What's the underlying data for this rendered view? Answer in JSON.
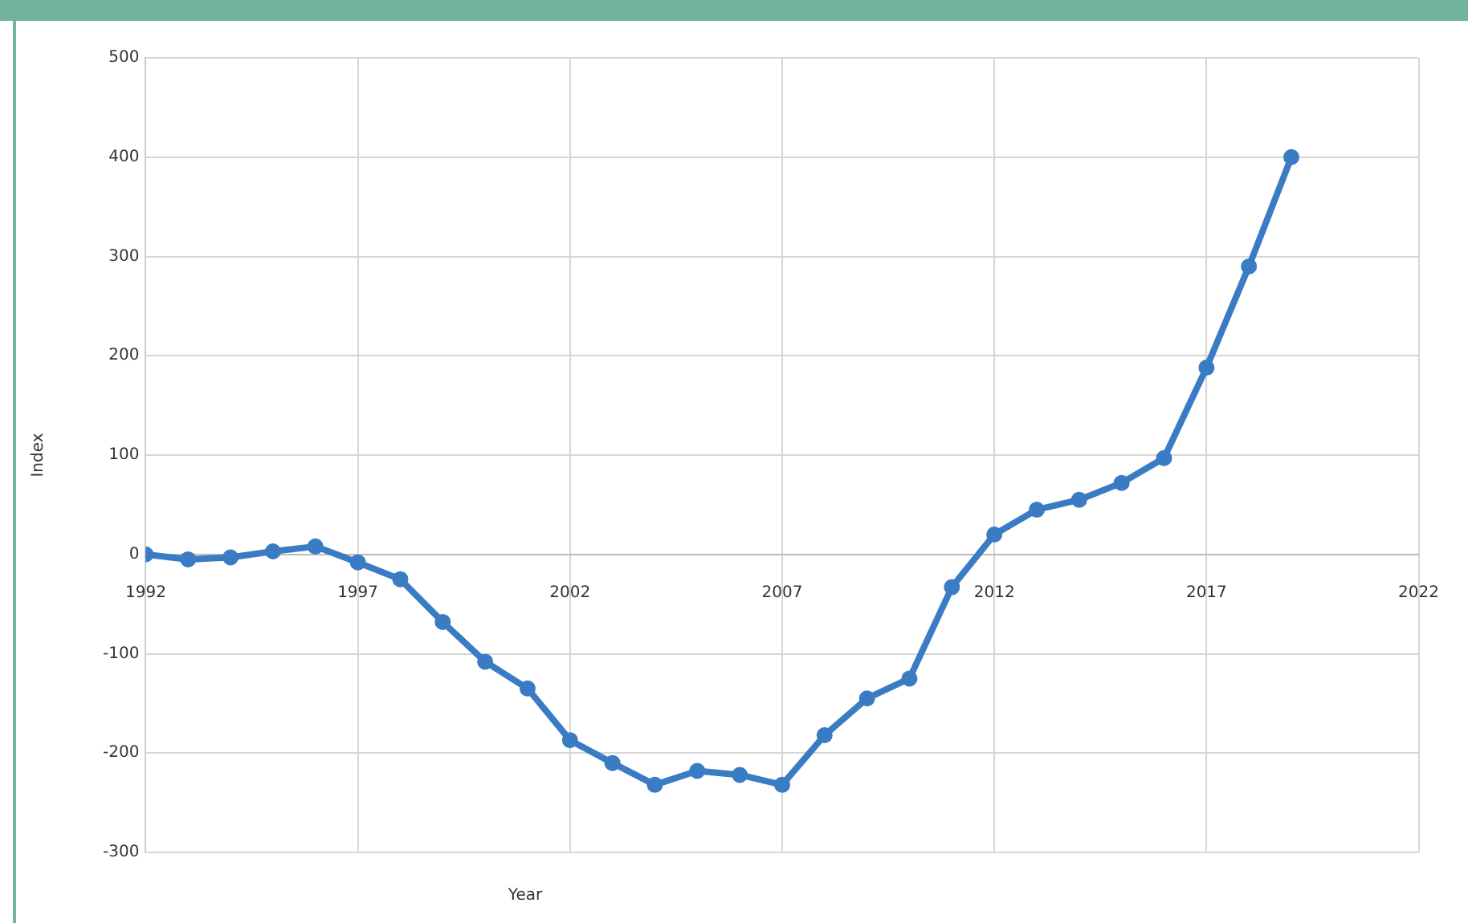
{
  "chart_data": {
    "type": "line",
    "xlabel": "Year",
    "ylabel": "Index",
    "x": [
      1992,
      1993,
      1994,
      1995,
      1996,
      1997,
      1998,
      1999,
      2000,
      2001,
      2002,
      2003,
      2004,
      2005,
      2006,
      2007,
      2008,
      2009,
      2010,
      2011,
      2012,
      2013,
      2014,
      2015,
      2016,
      2017,
      2018,
      2019
    ],
    "series": [
      {
        "color": "#3a7cc4",
        "values": [
          0,
          -5,
          -3,
          3,
          8,
          -8,
          -25,
          -68,
          -108,
          -135,
          -187,
          -210,
          -232,
          -218,
          -222,
          -232,
          -182,
          -145,
          -125,
          -33,
          20,
          45,
          55,
          72,
          97,
          188,
          290,
          400
        ]
      }
    ],
    "xlim": [
      1992,
      2022
    ],
    "xticks": [
      1992,
      1997,
      2002,
      2007,
      2012,
      2017,
      2022
    ],
    "ylim": [
      -300,
      500
    ],
    "yticks": [
      -300,
      -200,
      -100,
      0,
      100,
      200,
      300,
      400,
      500
    ],
    "grid": true,
    "legend": false,
    "marker": "circle",
    "line_style": "solid"
  }
}
